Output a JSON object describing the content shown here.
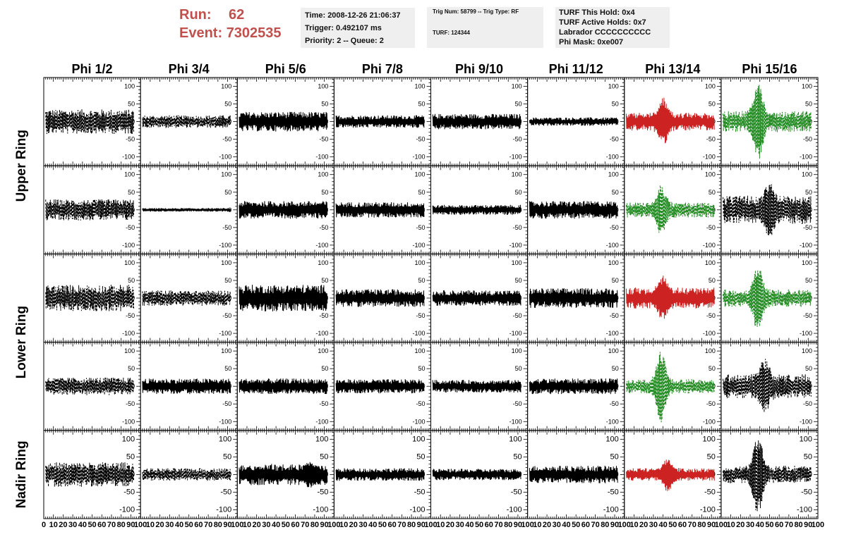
{
  "header": {
    "run_label": "Run:",
    "run_value": "62",
    "event_label": "Event:",
    "event_value": "7302535",
    "info_time": [
      "Time: 2008-12-26 21:06:37",
      "Trigger: 0.492107 ms",
      "Priority: 2 -- Queue: 2"
    ],
    "info_trig": [
      "Trig Num: 58799 -- Trig Type: RF",
      "TURF: 124344"
    ],
    "info_turf": [
      "TURF This Hold: 0x4",
      "TURF Active Holds: 0x7",
      "Labrador CCCCCCCCCC",
      "Phi Mask: 0xe007"
    ]
  },
  "colors": {
    "title_red": "#c0504d",
    "trace_black": "#000000",
    "trace_red": "#cc2222",
    "trace_green": "#228b22",
    "info_bg": "#efefef"
  },
  "chart_data": {
    "type": "line",
    "columns": [
      "Phi 1/2",
      "Phi 3/4",
      "Phi 5/6",
      "Phi 7/8",
      "Phi 9/10",
      "Phi 11/12",
      "Phi 13/14",
      "Phi 15/16"
    ],
    "rows": [
      "Upper Ring",
      "Lower Ring",
      "Nadir Ring"
    ],
    "xlim": [
      0,
      100
    ],
    "ylim": [
      -125,
      125
    ],
    "x_tick_labels": [
      "0",
      "10",
      "20",
      "30",
      "40",
      "50",
      "60",
      "70",
      "80",
      "90",
      "100"
    ],
    "y_tick_labels": [
      "100",
      "50",
      "0",
      "-50",
      "-100"
    ],
    "panels": [
      [
        {
          "style": "dashed",
          "color": "black",
          "amp": 35
        },
        {
          "style": "dashed",
          "color": "black",
          "amp": 18
        },
        {
          "style": "solid",
          "color": "black",
          "amp": 28
        },
        {
          "style": "solid",
          "color": "black",
          "amp": 18
        },
        {
          "style": "solid",
          "color": "black",
          "amp": 22
        },
        {
          "style": "solid",
          "color": "black",
          "amp": 12
        },
        {
          "style": "solid",
          "color": "red",
          "amp": 25,
          "pulse_amp": 70,
          "pulse_center": 40
        },
        {
          "style": "dashed",
          "color": "green",
          "amp": 30,
          "pulse_amp": 120,
          "pulse_center": 38
        }
      ],
      [
        {
          "style": "dashed",
          "color": "black",
          "amp": 30
        },
        {
          "style": "solid",
          "color": "black",
          "amp": 5
        },
        {
          "style": "solid",
          "color": "black",
          "amp": 25
        },
        {
          "style": "solid",
          "color": "black",
          "amp": 22
        },
        {
          "style": "solid",
          "color": "black",
          "amp": 14
        },
        {
          "style": "solid",
          "color": "black",
          "amp": 25
        },
        {
          "style": "dashed",
          "color": "green",
          "amp": 22,
          "pulse_amp": 75,
          "pulse_center": 38
        },
        {
          "style": "dashed",
          "color": "black",
          "amp": 40,
          "pulse_amp": 85,
          "pulse_center": 50
        }
      ],
      [
        {
          "style": "dashed",
          "color": "black",
          "amp": 38
        },
        {
          "style": "dashed",
          "color": "black",
          "amp": 22
        },
        {
          "style": "solid",
          "color": "black",
          "amp": 38
        },
        {
          "style": "solid",
          "color": "black",
          "amp": 25
        },
        {
          "style": "solid",
          "color": "black",
          "amp": 22
        },
        {
          "style": "solid",
          "color": "black",
          "amp": 28
        },
        {
          "style": "solid",
          "color": "red",
          "amp": 30,
          "pulse_amp": 65,
          "pulse_center": 40
        },
        {
          "style": "dashed",
          "color": "green",
          "amp": 25,
          "pulse_amp": 100,
          "pulse_center": 38
        }
      ],
      [
        {
          "style": "dashed",
          "color": "black",
          "amp": 25
        },
        {
          "style": "solid",
          "color": "black",
          "amp": 22
        },
        {
          "style": "solid",
          "color": "black",
          "amp": 22
        },
        {
          "style": "solid",
          "color": "black",
          "amp": 20
        },
        {
          "style": "solid",
          "color": "black",
          "amp": 18
        },
        {
          "style": "solid",
          "color": "black",
          "amp": 22
        },
        {
          "style": "dashed",
          "color": "green",
          "amp": 20,
          "pulse_amp": 105,
          "pulse_center": 38
        },
        {
          "style": "dashed",
          "color": "black",
          "amp": 35,
          "pulse_amp": 80,
          "pulse_center": 45
        }
      ],
      [
        {
          "style": "dashed",
          "color": "black",
          "amp": 35
        },
        {
          "style": "dashed",
          "color": "black",
          "amp": 18
        },
        {
          "style": "solid",
          "color": "black",
          "amp": 30,
          "pulse_amp": 40,
          "pulse_center": 75
        },
        {
          "style": "solid",
          "color": "black",
          "amp": 18
        },
        {
          "style": "solid",
          "color": "black",
          "amp": 16
        },
        {
          "style": "solid",
          "color": "black",
          "amp": 25
        },
        {
          "style": "solid",
          "color": "red",
          "amp": 18,
          "pulse_amp": 50,
          "pulse_center": 45
        },
        {
          "style": "dashed",
          "color": "black",
          "amp": 25,
          "pulse_amp": 120,
          "pulse_center": 38
        }
      ]
    ]
  }
}
